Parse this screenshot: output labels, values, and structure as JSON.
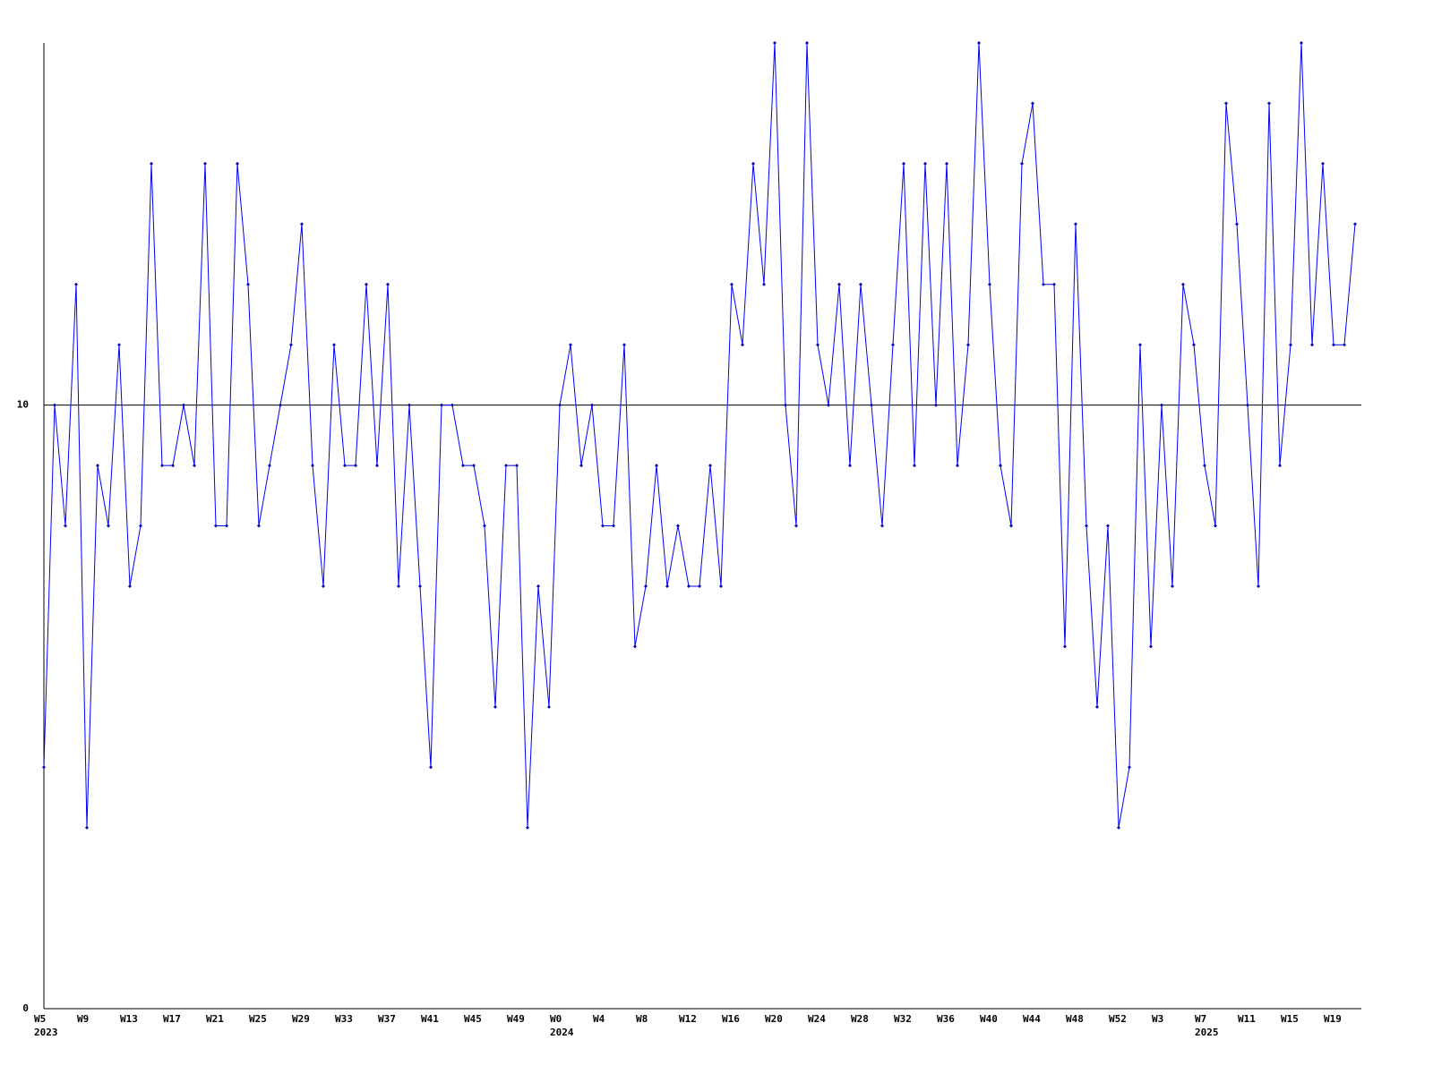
{
  "chart_data": {
    "type": "line",
    "categories": [
      "W5",
      null,
      null,
      null,
      "W9",
      null,
      null,
      null,
      "W13",
      null,
      null,
      null,
      "W17",
      null,
      null,
      null,
      "W21",
      null,
      null,
      null,
      "W25",
      null,
      null,
      null,
      "W29",
      null,
      null,
      null,
      "W33",
      null,
      null,
      null,
      "W37",
      null,
      null,
      null,
      "W41",
      null,
      null,
      null,
      "W45",
      null,
      null,
      null,
      "W49",
      null,
      null,
      null,
      "W0",
      null,
      null,
      null,
      "W4",
      null,
      null,
      null,
      "W8",
      null,
      null,
      null,
      "W12",
      null,
      null,
      null,
      "W16",
      null,
      null,
      null,
      "W20",
      null,
      null,
      null,
      "W24",
      null,
      null,
      null,
      "W28",
      null,
      null,
      null,
      "W32",
      null,
      null,
      null,
      "W36",
      null,
      null,
      null,
      "W40",
      null,
      null,
      null,
      "W44",
      null,
      null,
      null,
      "W48",
      null,
      null,
      null,
      "W52",
      null,
      null,
      null,
      "W3",
      null,
      null,
      null,
      "W7",
      null,
      null,
      null,
      "W11",
      null,
      null,
      null,
      "W15",
      null,
      null,
      null,
      "W19",
      null,
      null
    ],
    "years": [
      "2023",
      null,
      null,
      null,
      null,
      null,
      null,
      null,
      null,
      null,
      null,
      null,
      null,
      null,
      null,
      null,
      null,
      null,
      null,
      null,
      null,
      null,
      null,
      null,
      null,
      null,
      null,
      null,
      null,
      null,
      null,
      null,
      null,
      null,
      null,
      null,
      null,
      null,
      null,
      null,
      null,
      null,
      null,
      null,
      null,
      null,
      null,
      null,
      "2024",
      null,
      null,
      null,
      null,
      null,
      null,
      null,
      null,
      null,
      null,
      null,
      null,
      null,
      null,
      null,
      null,
      null,
      null,
      null,
      null,
      null,
      null,
      null,
      null,
      null,
      null,
      null,
      null,
      null,
      null,
      null,
      null,
      null,
      null,
      null,
      null,
      null,
      null,
      null,
      null,
      null,
      null,
      null,
      null,
      null,
      null,
      null,
      null,
      null,
      null,
      null,
      null,
      null,
      null,
      null,
      null,
      null,
      null,
      null,
      "2025",
      null,
      null,
      null,
      null,
      null,
      null,
      null,
      null,
      null,
      null,
      null,
      null,
      null,
      null,
      null,
      null,
      null,
      null
    ],
    "color": "#0000ff",
    "values": [
      4,
      10,
      8,
      12,
      3,
      9,
      8,
      11,
      7,
      8,
      14,
      9,
      9,
      10,
      9,
      14,
      8,
      8,
      14,
      12,
      8,
      9,
      10,
      11,
      13,
      9,
      7,
      11,
      9,
      9,
      12,
      9,
      12,
      7,
      10,
      7,
      4,
      10,
      10,
      9,
      9,
      8,
      5,
      9,
      9,
      3,
      7,
      5,
      10,
      11,
      9,
      10,
      8,
      8,
      11,
      6,
      7,
      9,
      7,
      8,
      7,
      7,
      9,
      7,
      12,
      11,
      14,
      12,
      16,
      10,
      8,
      16,
      11,
      10,
      12,
      9,
      12,
      10,
      8,
      11,
      14,
      9,
      14,
      10,
      14,
      9,
      11,
      16,
      12,
      9,
      8,
      14,
      15,
      12,
      12,
      6,
      13,
      8,
      5,
      8,
      3,
      4,
      11,
      6,
      10,
      7,
      12,
      11,
      9,
      8,
      15,
      13,
      10,
      7,
      15,
      9,
      11,
      16,
      11,
      14,
      11,
      11,
      13
    ],
    "ylim": [
      0,
      16
    ],
    "yticks": [
      0,
      10
    ],
    "grid": true
  }
}
